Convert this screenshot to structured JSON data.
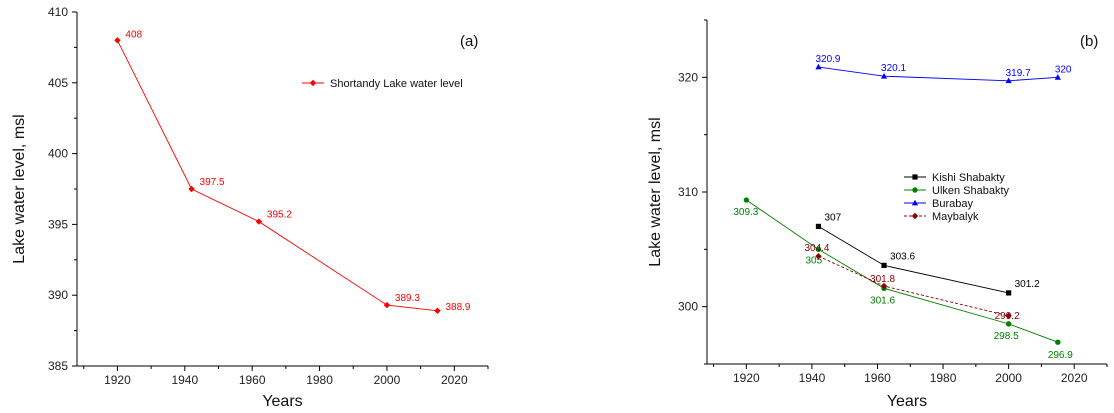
{
  "chart_data": [
    {
      "type": "line",
      "panel_label": "(a)",
      "xlabel": "Years",
      "ylabel": "Lake water level, msl",
      "xlim": [
        1908,
        2030
      ],
      "ylim": [
        385,
        410
      ],
      "xticks": [
        1920,
        1940,
        1960,
        1980,
        2000,
        2020
      ],
      "yticks": [
        385,
        390,
        395,
        400,
        405,
        410
      ],
      "legend_position": "top-right",
      "series": [
        {
          "name": "Shortandy Lake water level",
          "color": "#ff0000",
          "marker": "diamond",
          "dashed": false,
          "x": [
            1920,
            1942,
            1962,
            2000,
            2015
          ],
          "y": [
            408,
            397.5,
            395.2,
            389.3,
            388.9
          ],
          "labels": [
            "408",
            "397.5",
            "395.2",
            "389.3",
            "388.9"
          ]
        }
      ]
    },
    {
      "type": "line",
      "panel_label": "(b)",
      "xlabel": "Years",
      "ylabel": "Lake water level, msl",
      "xlim": [
        1908,
        2030
      ],
      "ylim": [
        295,
        325
      ],
      "xticks": [
        1920,
        1940,
        1960,
        1980,
        2000,
        2020
      ],
      "yticks": [
        300,
        310,
        320
      ],
      "legend_position": "center",
      "series": [
        {
          "name": "Kishi Shabakty",
          "color": "#000000",
          "marker": "square",
          "dashed": false,
          "x": [
            1942,
            1962,
            2000
          ],
          "y": [
            307,
            303.6,
            301.2
          ],
          "labels": [
            "307",
            "303.6",
            "301.2"
          ]
        },
        {
          "name": "Ulken Shabakty",
          "color": "#008000",
          "marker": "circle",
          "dashed": false,
          "x": [
            1920,
            1942,
            1962,
            2000,
            2015
          ],
          "y": [
            309.3,
            305,
            301.6,
            298.5,
            296.9
          ],
          "labels": [
            "309.3",
            "305",
            "301.6",
            "298.5",
            "296.9"
          ]
        },
        {
          "name": "Burabay",
          "color": "#0000ff",
          "marker": "triangle",
          "dashed": false,
          "x": [
            1942,
            1962,
            2000,
            2015
          ],
          "y": [
            320.9,
            320.1,
            319.7,
            320
          ],
          "labels": [
            "320.9",
            "320.1",
            "319.7",
            "320"
          ]
        },
        {
          "name": "Maybalyk",
          "color": "#8b0000",
          "marker": "diamond",
          "dashed": true,
          "x": [
            1942,
            1962,
            2000
          ],
          "y": [
            304.4,
            301.8,
            299.2
          ],
          "labels": [
            "304.4",
            "301.8",
            "299.2"
          ]
        }
      ]
    }
  ]
}
